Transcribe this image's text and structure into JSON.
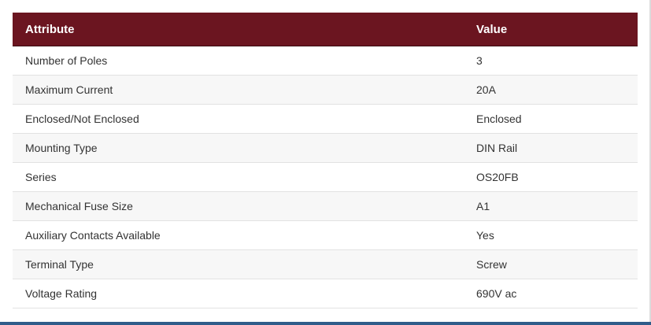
{
  "table": {
    "headers": {
      "attribute": "Attribute",
      "value": "Value"
    },
    "rows": [
      {
        "attribute": "Number of Poles",
        "value": "3"
      },
      {
        "attribute": "Maximum Current",
        "value": "20A"
      },
      {
        "attribute": "Enclosed/Not Enclosed",
        "value": "Enclosed"
      },
      {
        "attribute": "Mounting Type",
        "value": "DIN Rail"
      },
      {
        "attribute": "Series",
        "value": "OS20FB"
      },
      {
        "attribute": "Mechanical Fuse Size",
        "value": "A1"
      },
      {
        "attribute": "Auxiliary Contacts Available",
        "value": "Yes"
      },
      {
        "attribute": "Terminal Type",
        "value": "Screw"
      },
      {
        "attribute": "Voltage Rating",
        "value": "690V ac"
      }
    ]
  },
  "colors": {
    "header_background": "#6b1520",
    "header_text": "#ffffff",
    "row_alt_background": "#f7f7f7",
    "body_text": "#333333",
    "bottom_bar": "#2f5c8a"
  }
}
